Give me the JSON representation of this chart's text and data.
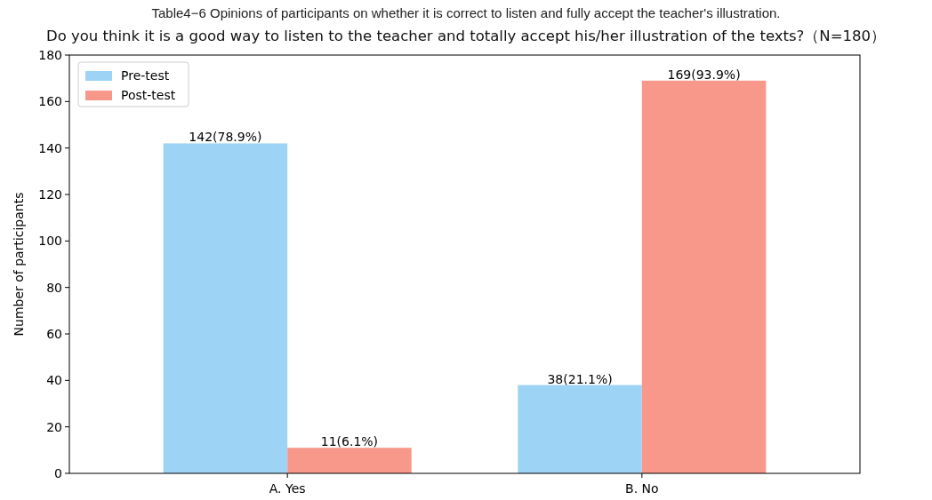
{
  "chart_data": {
    "type": "bar",
    "title": "Table4−6 Opinions of participants on whether it is correct to listen and fully accept the teacher's illustration.",
    "subtitle": "Do you think it is a good way to listen to the teacher and totally accept his/her illustration of the texts?（N=180）",
    "ylabel": "Number of participants",
    "categories": [
      "A. Yes",
      "B. No"
    ],
    "series": [
      {
        "name": "Pre-test",
        "color": "#9dd4f6",
        "values": [
          142,
          38
        ],
        "value_labels": [
          "142(78.9%)",
          "38(21.1%)"
        ]
      },
      {
        "name": "Post-test",
        "color": "#f8988b",
        "values": [
          11,
          169
        ],
        "value_labels": [
          "11(6.1%)",
          "169(93.9%)"
        ]
      }
    ],
    "ylim": [
      0,
      180
    ],
    "yticks": [
      0,
      20,
      40,
      60,
      80,
      100,
      120,
      140,
      160,
      180
    ],
    "legend": "top left",
    "grid": false
  }
}
